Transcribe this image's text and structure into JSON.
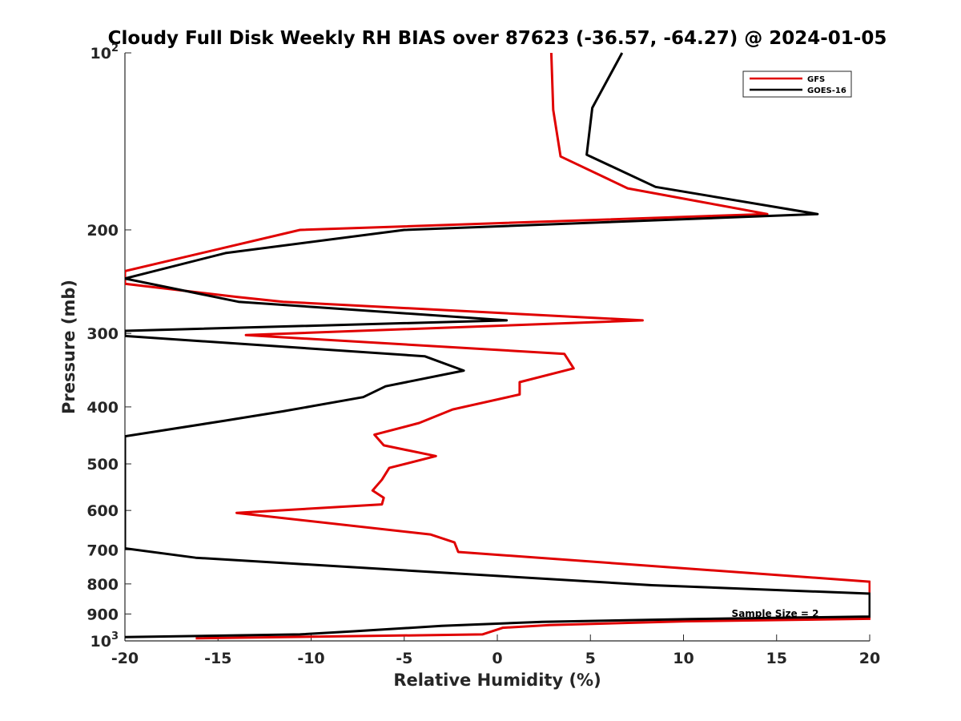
{
  "chart_data": {
    "type": "line",
    "title": "Cloudy Full Disk Weekly RH BIAS over 87623 (-36.57, -64.27) @ 2024-01-05",
    "xlabel": "Relative Humidity (%)",
    "ylabel": "Pressure (mb)",
    "xlim": [
      -20,
      20
    ],
    "ylim": [
      100,
      1000
    ],
    "yscale": "log",
    "yreversed": true,
    "xticks": [
      -20,
      -15,
      -10,
      -5,
      0,
      5,
      10,
      15,
      20
    ],
    "yticks": [
      {
        "value": 100,
        "base": "10",
        "exp": "2"
      },
      {
        "value": 200,
        "label": "200"
      },
      {
        "value": 300,
        "label": "300"
      },
      {
        "value": 400,
        "label": "400"
      },
      {
        "value": 500,
        "label": "500"
      },
      {
        "value": 600,
        "label": "600"
      },
      {
        "value": 700,
        "label": "700"
      },
      {
        "value": 800,
        "label": "800"
      },
      {
        "value": 900,
        "label": "900"
      },
      {
        "value": 1000,
        "base": "10",
        "exp": "3"
      }
    ],
    "grid": false,
    "legend_position": "top-right",
    "annotation": "Sample Size = 2",
    "series": [
      {
        "name": "GFS",
        "color": "#e00000",
        "points": [
          [
            2.9,
            100
          ],
          [
            3.0,
            125
          ],
          [
            3.4,
            150
          ],
          [
            7.0,
            170
          ],
          [
            14.5,
            188
          ],
          [
            -10.6,
            200
          ],
          [
            -20,
            235
          ],
          [
            -20,
            247
          ],
          [
            -14,
            260
          ],
          [
            -11.5,
            265
          ],
          [
            7.8,
            285
          ],
          [
            -13.5,
            302
          ],
          [
            3.6,
            325
          ],
          [
            4.1,
            344
          ],
          [
            1.2,
            363
          ],
          [
            1.2,
            381
          ],
          [
            -2.4,
            404
          ],
          [
            -4.2,
            426
          ],
          [
            -6.6,
            446
          ],
          [
            -6.1,
            465
          ],
          [
            -3.3,
            485
          ],
          [
            -5.8,
            508
          ],
          [
            -6.2,
            532
          ],
          [
            -6.7,
            555
          ],
          [
            -6.1,
            571
          ],
          [
            -6.2,
            586
          ],
          [
            -14,
            606
          ],
          [
            -3.6,
            659
          ],
          [
            -2.3,
            680
          ],
          [
            -2.1,
            706
          ],
          [
            20,
            793
          ],
          [
            20,
            917
          ],
          [
            10.2,
            926
          ],
          [
            2.8,
            940
          ],
          [
            0.3,
            950
          ],
          [
            -0.8,
            975
          ],
          [
            -16.2,
            990
          ]
        ]
      },
      {
        "name": "GOES-16",
        "color": "#000000",
        "points": [
          [
            6.7,
            100
          ],
          [
            5.1,
            124
          ],
          [
            4.8,
            149
          ],
          [
            8.5,
            169
          ],
          [
            17.2,
            188
          ],
          [
            -5,
            200
          ],
          [
            -14.6,
            219
          ],
          [
            -20,
            242
          ],
          [
            -13.9,
            265
          ],
          [
            0.5,
            285
          ],
          [
            -20,
            297
          ],
          [
            -20,
            303
          ],
          [
            -3.9,
            328
          ],
          [
            -1.8,
            347
          ],
          [
            -6.0,
            369
          ],
          [
            -7.2,
            385
          ],
          [
            -11.5,
            407
          ],
          [
            -14.6,
            422
          ],
          [
            -20,
            449
          ],
          [
            -20,
            696
          ],
          [
            -16.2,
            722
          ],
          [
            8.3,
            804
          ],
          [
            20,
            831
          ],
          [
            20,
            909
          ],
          [
            10.4,
            918
          ],
          [
            2.4,
            928
          ],
          [
            -3.0,
            943
          ],
          [
            -7.7,
            963
          ],
          [
            -10.6,
            975
          ],
          [
            -20,
            985
          ]
        ]
      }
    ]
  }
}
